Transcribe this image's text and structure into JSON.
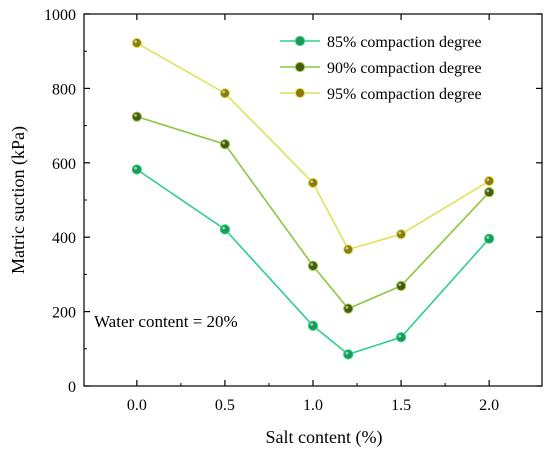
{
  "chart_data": {
    "type": "line",
    "title": "",
    "xlabel": "Salt content (%)",
    "ylabel": "Matric suction (kPa)",
    "xlim": [
      -0.3,
      2.3
    ],
    "ylim": [
      0,
      1000
    ],
    "xticks": [
      0.0,
      0.5,
      1.0,
      1.5,
      2.0
    ],
    "xtick_labels": [
      "0.0",
      "0.5",
      "1.0",
      "1.5",
      "2.0"
    ],
    "yticks": [
      0,
      200,
      400,
      600,
      800,
      1000
    ],
    "ytick_labels": [
      "0",
      "200",
      "400",
      "600",
      "800",
      "1000"
    ],
    "x": [
      0.0,
      0.5,
      1.0,
      1.2,
      1.5,
      2.0
    ],
    "series": [
      {
        "name": "85% compaction degree",
        "values": [
          582,
          421,
          162,
          85,
          131,
          396
        ],
        "line_color": "#2ecf8c",
        "marker_color": "#1a9a55"
      },
      {
        "name": "90% compaction degree",
        "values": [
          724,
          650,
          323,
          208,
          269,
          521
        ],
        "line_color": "#8ec63f",
        "marker_color": "#4a5a10"
      },
      {
        "name": "95% compaction degree",
        "values": [
          922,
          787,
          546,
          367,
          408,
          551
        ],
        "line_color": "#e0e05a",
        "marker_color": "#8a7a10"
      }
    ],
    "annotation": "Water content = 20%",
    "legend_position": "top-right",
    "grid": false
  }
}
